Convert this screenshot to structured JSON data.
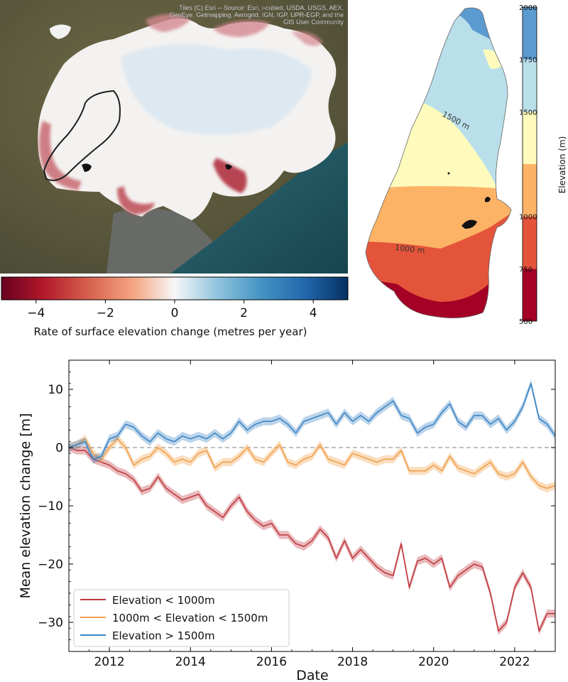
{
  "map_panel": {
    "attribution_line1": "Tiles (C) Esri -- Source: Esri, i-cubed, USDA, USGS, AEX,",
    "attribution_line2": "GeoEye, Getmapping, Aerogrid, IGN, IGP, UPR-EGP, and the",
    "attribution_line3": "GIS User Community",
    "colorbar_label": "Rate of surface elevation change (metres per year)",
    "colorbar_ticks": [
      "−4",
      "−2",
      "0",
      "2",
      "4"
    ],
    "colorbar_tick_values": [
      -4,
      -2,
      0,
      2,
      4
    ],
    "colorbar_range": [
      -5,
      5
    ],
    "colormap": "RdBu",
    "colors": {
      "neg": "#67001f",
      "neg_mid": "#d6604d",
      "neutral": "#f7f7f7",
      "pos_mid": "#4393c3",
      "pos": "#053061"
    }
  },
  "elevation_panel": {
    "colorbar_label": "Elevation (m)",
    "colorbar_ticks": [
      "500",
      "750",
      "1000",
      "1500",
      "1750",
      "2000"
    ],
    "colorbar_tick_values": [
      500,
      750,
      1000,
      1500,
      1750,
      2000
    ],
    "contour_labels": [
      "1500 m",
      "1000 m"
    ],
    "bands": [
      {
        "from": 500,
        "to": 750,
        "color": "#a50026"
      },
      {
        "from": 750,
        "to": 1000,
        "color": "#e4543a"
      },
      {
        "from": 1000,
        "to": 1250,
        "color": "#fdb366"
      },
      {
        "from": 1250,
        "to": 1500,
        "color": "#fefbbc"
      },
      {
        "from": 1500,
        "to": 1750,
        "color": "#b9dfea"
      },
      {
        "from": 1750,
        "to": 2000,
        "color": "#5b9bd0"
      }
    ]
  },
  "chart_data": {
    "type": "line",
    "xlabel": "Date",
    "ylabel": "Mean elevation change [m]",
    "xlim": [
      2011.0,
      2023.0
    ],
    "ylim": [
      -35,
      15
    ],
    "xticks": [
      2012,
      2014,
      2016,
      2018,
      2020,
      2022
    ],
    "xtick_labels": [
      "2012",
      "2014",
      "2016",
      "2018",
      "2020",
      "2022"
    ],
    "yticks": [
      -30,
      -20,
      -10,
      0,
      10
    ],
    "ytick_labels": [
      "−30",
      "−20",
      "−10",
      "0",
      "10"
    ],
    "reference_line": 0,
    "grid": false,
    "legend_position": "lower-left",
    "series": [
      {
        "name": "Elevation < 1000m",
        "color": "#c0393f",
        "band": 0.7,
        "x": [
          2011.0,
          2011.2,
          2011.4,
          2011.6,
          2011.8,
          2012.0,
          2012.2,
          2012.4,
          2012.6,
          2012.8,
          2013.0,
          2013.2,
          2013.4,
          2013.6,
          2013.8,
          2014.0,
          2014.2,
          2014.4,
          2014.6,
          2014.8,
          2015.0,
          2015.2,
          2015.4,
          2015.6,
          2015.8,
          2016.0,
          2016.2,
          2016.4,
          2016.6,
          2016.8,
          2017.0,
          2017.2,
          2017.4,
          2017.6,
          2017.8,
          2018.0,
          2018.2,
          2018.4,
          2018.6,
          2018.8,
          2019.0,
          2019.2,
          2019.4,
          2019.6,
          2019.8,
          2020.0,
          2020.2,
          2020.4,
          2020.6,
          2020.8,
          2021.0,
          2021.2,
          2021.4,
          2021.6,
          2021.8,
          2022.0,
          2022.2,
          2022.4,
          2022.6,
          2022.8,
          2023.0
        ],
        "values": [
          0.0,
          -0.5,
          -0.5,
          -2.0,
          -2.5,
          -3.0,
          -4.0,
          -4.5,
          -5.5,
          -7.5,
          -7.0,
          -5.0,
          -7.0,
          -8.0,
          -9.0,
          -8.5,
          -8.0,
          -10.0,
          -11.0,
          -12.0,
          -10.0,
          -8.5,
          -11.0,
          -12.5,
          -13.5,
          -13.0,
          -15.0,
          -15.0,
          -16.5,
          -17.0,
          -16.0,
          -14.0,
          -15.5,
          -19.0,
          -16.0,
          -19.0,
          -17.5,
          -19.0,
          -20.5,
          -21.5,
          -22.0,
          -16.5,
          -24.0,
          -19.5,
          -19.0,
          -20.0,
          -19.0,
          -24.0,
          -22.0,
          -21.0,
          -20.0,
          -20.5,
          -25.0,
          -31.5,
          -30.0,
          -24.0,
          -21.5,
          -24.0,
          -31.5,
          -28.5,
          -28.5
        ]
      },
      {
        "name": "1000m < Elevation < 1500m",
        "color": "#f0a04b",
        "band": 0.7,
        "x": [
          2011.0,
          2011.2,
          2011.4,
          2011.6,
          2011.8,
          2012.0,
          2012.2,
          2012.4,
          2012.6,
          2012.8,
          2013.0,
          2013.2,
          2013.4,
          2013.6,
          2013.8,
          2014.0,
          2014.2,
          2014.4,
          2014.6,
          2014.8,
          2015.0,
          2015.2,
          2015.4,
          2015.6,
          2015.8,
          2016.0,
          2016.2,
          2016.4,
          2016.6,
          2016.8,
          2017.0,
          2017.2,
          2017.4,
          2017.6,
          2017.8,
          2018.0,
          2018.2,
          2018.4,
          2018.6,
          2018.8,
          2019.0,
          2019.2,
          2019.4,
          2019.6,
          2019.8,
          2020.0,
          2020.2,
          2020.4,
          2020.6,
          2020.8,
          2021.0,
          2021.2,
          2021.4,
          2021.6,
          2021.8,
          2022.0,
          2022.2,
          2022.4,
          2022.6,
          2022.8,
          2023.0
        ],
        "values": [
          0.0,
          0.5,
          1.5,
          -1.0,
          -2.0,
          0.0,
          1.5,
          0.0,
          -3.0,
          -2.0,
          -1.5,
          0.0,
          -1.0,
          -2.5,
          -2.0,
          -2.5,
          -1.0,
          -0.5,
          -3.5,
          -2.5,
          -2.5,
          -1.5,
          0.0,
          -2.0,
          -2.5,
          -1.0,
          0.5,
          -2.5,
          -3.0,
          -2.0,
          -1.5,
          0.5,
          -2.0,
          -2.5,
          -3.0,
          -1.0,
          -1.5,
          -2.0,
          -2.5,
          -2.0,
          -2.0,
          -0.5,
          -4.0,
          -4.0,
          -4.0,
          -3.0,
          -4.0,
          -1.5,
          -3.5,
          -4.0,
          -4.5,
          -3.5,
          -2.5,
          -4.5,
          -5.0,
          -4.5,
          -2.5,
          -5.0,
          -6.5,
          -7.0,
          -6.5
        ]
      },
      {
        "name": "Elevation > 1500m",
        "color": "#3c85c4",
        "band": 0.7,
        "x": [
          2011.0,
          2011.2,
          2011.4,
          2011.6,
          2011.8,
          2012.0,
          2012.2,
          2012.4,
          2012.6,
          2012.8,
          2013.0,
          2013.2,
          2013.4,
          2013.6,
          2013.8,
          2014.0,
          2014.2,
          2014.4,
          2014.6,
          2014.8,
          2015.0,
          2015.2,
          2015.4,
          2015.6,
          2015.8,
          2016.0,
          2016.2,
          2016.4,
          2016.6,
          2016.8,
          2017.0,
          2017.2,
          2017.4,
          2017.6,
          2017.8,
          2018.0,
          2018.2,
          2018.4,
          2018.6,
          2018.8,
          2019.0,
          2019.2,
          2019.4,
          2019.6,
          2019.8,
          2020.0,
          2020.2,
          2020.4,
          2020.6,
          2020.8,
          2021.0,
          2021.2,
          2021.4,
          2021.6,
          2021.8,
          2022.0,
          2022.2,
          2022.4,
          2022.6,
          2022.8,
          2023.0
        ],
        "values": [
          0.0,
          0.5,
          1.0,
          -2.0,
          -1.5,
          1.5,
          2.0,
          4.0,
          3.5,
          2.0,
          1.0,
          2.5,
          1.5,
          1.0,
          2.0,
          1.5,
          2.0,
          1.5,
          2.5,
          1.5,
          2.5,
          4.5,
          3.0,
          4.0,
          4.5,
          4.5,
          5.0,
          4.0,
          2.5,
          4.5,
          5.0,
          5.5,
          6.0,
          4.0,
          6.0,
          4.5,
          5.5,
          4.5,
          6.0,
          7.0,
          8.0,
          5.5,
          5.0,
          2.5,
          3.5,
          4.0,
          6.0,
          7.5,
          4.5,
          3.5,
          5.5,
          5.5,
          4.0,
          5.0,
          3.0,
          4.5,
          7.0,
          11.0,
          5.0,
          4.0,
          2.0
        ]
      }
    ]
  }
}
